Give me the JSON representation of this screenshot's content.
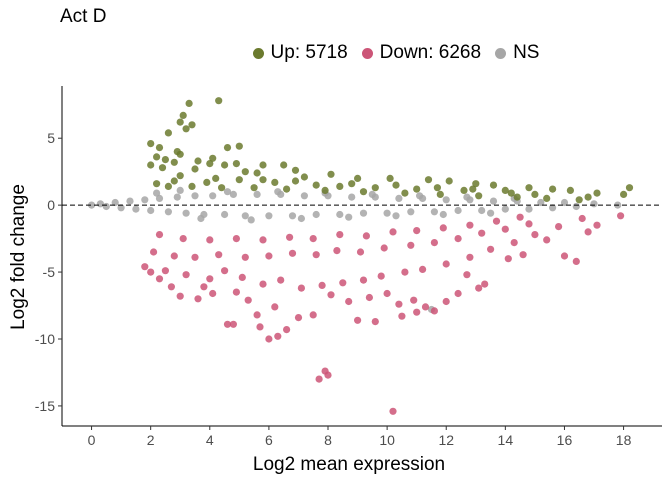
{
  "chart_data": {
    "type": "scatter",
    "title": "Act D",
    "xlabel": "Log2 mean expression",
    "ylabel": "Log2 fold change",
    "xlim": [
      -1,
      19.3
    ],
    "ylim": [
      -16.5,
      8.9
    ],
    "xticks": [
      0,
      2,
      4,
      6,
      8,
      10,
      12,
      14,
      16,
      18
    ],
    "yticks": [
      5,
      0,
      -5,
      -10,
      -15
    ],
    "reference_line_y": 0,
    "grid": false,
    "legend_position": "top",
    "series": [
      {
        "name": "Up: 5718",
        "color": "#6b7a2e",
        "points": [
          [
            3.3,
            7.6
          ],
          [
            4.3,
            7.8
          ],
          [
            3.1,
            6.7
          ],
          [
            3.0,
            6.2
          ],
          [
            3.4,
            6.0
          ],
          [
            3.2,
            5.7
          ],
          [
            2.6,
            5.4
          ],
          [
            2.0,
            4.6
          ],
          [
            2.3,
            4.3
          ],
          [
            4.6,
            4.3
          ],
          [
            5.0,
            4.4
          ],
          [
            2.9,
            4.0
          ],
          [
            3.0,
            3.8
          ],
          [
            2.2,
            3.6
          ],
          [
            2.5,
            3.4
          ],
          [
            2.8,
            3.2
          ],
          [
            3.6,
            3.3
          ],
          [
            4.1,
            3.5
          ],
          [
            4.0,
            3.1
          ],
          [
            4.9,
            3.1
          ],
          [
            5.8,
            3.0
          ],
          [
            6.5,
            3.0
          ],
          [
            4.5,
            3.0
          ],
          [
            2.0,
            3.0
          ],
          [
            2.4,
            2.8
          ],
          [
            3.5,
            2.7
          ],
          [
            5.2,
            2.5
          ],
          [
            6.9,
            2.6
          ],
          [
            5.6,
            2.4
          ],
          [
            7.2,
            2.1
          ],
          [
            8.1,
            2.3
          ],
          [
            9.0,
            2.0
          ],
          [
            10.1,
            2.0
          ],
          [
            11.4,
            1.9
          ],
          [
            12.1,
            1.8
          ],
          [
            13.0,
            1.6
          ],
          [
            13.6,
            1.5
          ],
          [
            14.8,
            1.3
          ],
          [
            15.6,
            1.2
          ],
          [
            16.2,
            1.1
          ],
          [
            17.1,
            0.9
          ],
          [
            18.2,
            1.3
          ],
          [
            18.0,
            0.8
          ],
          [
            16.8,
            0.6
          ],
          [
            15.0,
            0.8
          ],
          [
            14.2,
            0.9
          ],
          [
            12.6,
            1.1
          ],
          [
            11.0,
            1.2
          ],
          [
            9.6,
            1.3
          ],
          [
            8.4,
            1.4
          ],
          [
            7.6,
            1.5
          ],
          [
            6.2,
            1.7
          ],
          [
            5.0,
            1.9
          ],
          [
            4.2,
            2.0
          ],
          [
            3.0,
            2.2
          ],
          [
            2.2,
            1.6
          ],
          [
            2.6,
            1.4
          ],
          [
            3.4,
            1.4
          ],
          [
            4.4,
            1.3
          ],
          [
            5.5,
            1.3
          ],
          [
            6.6,
            1.2
          ],
          [
            7.9,
            1.1
          ],
          [
            9.2,
            1.0
          ],
          [
            10.6,
            0.9
          ],
          [
            11.8,
            0.8
          ],
          [
            13.1,
            0.7
          ],
          [
            14.4,
            0.6
          ],
          [
            15.4,
            0.5
          ],
          [
            16.5,
            0.4
          ],
          [
            2.8,
            1.8
          ],
          [
            3.9,
            1.7
          ],
          [
            5.8,
            1.9
          ],
          [
            6.9,
            1.8
          ],
          [
            8.8,
            1.6
          ],
          [
            10.3,
            1.5
          ],
          [
            11.7,
            1.3
          ],
          [
            12.9,
            1.2
          ],
          [
            14.0,
            1.1
          ]
        ]
      },
      {
        "name": "Down: 6268",
        "color": "#cc5577",
        "points": [
          [
            10.2,
            -15.4
          ],
          [
            7.9,
            -12.4
          ],
          [
            7.7,
            -13.0
          ],
          [
            8.0,
            -12.7
          ],
          [
            6.3,
            -9.8
          ],
          [
            6.0,
            -10.0
          ],
          [
            6.6,
            -9.3
          ],
          [
            5.7,
            -9.1
          ],
          [
            4.8,
            -8.9
          ],
          [
            4.6,
            -8.9
          ],
          [
            5.6,
            -8.2
          ],
          [
            7.0,
            -8.4
          ],
          [
            7.5,
            -8.2
          ],
          [
            9.0,
            -8.6
          ],
          [
            9.6,
            -8.7
          ],
          [
            10.5,
            -8.3
          ],
          [
            11.0,
            -8.0
          ],
          [
            11.6,
            -7.9
          ],
          [
            11.3,
            -7.6
          ],
          [
            10.9,
            -7.1
          ],
          [
            12.0,
            -7.2
          ],
          [
            12.4,
            -6.6
          ],
          [
            13.1,
            -6.2
          ],
          [
            13.3,
            -5.9
          ],
          [
            12.7,
            -5.2
          ],
          [
            14.1,
            -4.0
          ],
          [
            14.6,
            -3.7
          ],
          [
            16.0,
            -3.8
          ],
          [
            16.4,
            -4.2
          ],
          [
            15.4,
            -2.6
          ],
          [
            16.8,
            -2.0
          ],
          [
            17.1,
            -1.5
          ],
          [
            17.9,
            -0.8
          ],
          [
            4.0,
            -5.5
          ],
          [
            3.8,
            -6.1
          ],
          [
            4.1,
            -6.6
          ],
          [
            3.6,
            -7.0
          ],
          [
            3.0,
            -6.8
          ],
          [
            2.7,
            -6.1
          ],
          [
            2.3,
            -5.5
          ],
          [
            2.0,
            -5.0
          ],
          [
            1.8,
            -4.6
          ],
          [
            2.5,
            -4.9
          ],
          [
            3.2,
            -5.2
          ],
          [
            4.5,
            -4.9
          ],
          [
            5.1,
            -5.4
          ],
          [
            5.8,
            -5.9
          ],
          [
            6.4,
            -5.6
          ],
          [
            7.1,
            -6.2
          ],
          [
            7.8,
            -6.0
          ],
          [
            8.5,
            -5.8
          ],
          [
            9.2,
            -5.6
          ],
          [
            9.8,
            -5.3
          ],
          [
            10.6,
            -5.0
          ],
          [
            11.2,
            -4.8
          ],
          [
            12.0,
            -4.4
          ],
          [
            12.8,
            -3.9
          ],
          [
            13.5,
            -3.3
          ],
          [
            14.3,
            -2.8
          ],
          [
            15.0,
            -2.2
          ],
          [
            15.8,
            -1.6
          ],
          [
            16.6,
            -1.0
          ],
          [
            2.1,
            -3.5
          ],
          [
            2.8,
            -3.8
          ],
          [
            3.5,
            -3.9
          ],
          [
            4.3,
            -3.7
          ],
          [
            5.2,
            -3.9
          ],
          [
            6.0,
            -3.8
          ],
          [
            6.8,
            -3.6
          ],
          [
            7.6,
            -3.7
          ],
          [
            8.3,
            -3.4
          ],
          [
            9.1,
            -3.5
          ],
          [
            9.9,
            -3.2
          ],
          [
            10.8,
            -3.0
          ],
          [
            11.6,
            -2.8
          ],
          [
            12.4,
            -2.5
          ],
          [
            13.2,
            -2.1
          ],
          [
            14.0,
            -1.8
          ],
          [
            14.8,
            -1.4
          ],
          [
            2.3,
            -2.2
          ],
          [
            3.1,
            -2.5
          ],
          [
            4.0,
            -2.6
          ],
          [
            4.9,
            -2.5
          ],
          [
            5.8,
            -2.6
          ],
          [
            6.7,
            -2.4
          ],
          [
            7.5,
            -2.5
          ],
          [
            8.4,
            -2.2
          ],
          [
            9.3,
            -2.3
          ],
          [
            10.2,
            -2.0
          ],
          [
            11.0,
            -1.9
          ],
          [
            11.9,
            -1.7
          ],
          [
            12.8,
            -1.5
          ],
          [
            13.7,
            -1.2
          ],
          [
            14.5,
            -0.9
          ],
          [
            8.7,
            -7.2
          ],
          [
            9.4,
            -6.9
          ],
          [
            6.2,
            -7.6
          ],
          [
            5.3,
            -7.1
          ],
          [
            4.9,
            -6.5
          ],
          [
            8.1,
            -6.7
          ],
          [
            10.0,
            -6.6
          ],
          [
            10.4,
            -7.4
          ]
        ]
      },
      {
        "name": "NS",
        "color": "#a6a6a6",
        "points": [
          [
            0.0,
            0.0
          ],
          [
            0.3,
            0.1
          ],
          [
            0.5,
            -0.1
          ],
          [
            0.8,
            0.2
          ],
          [
            1.0,
            -0.2
          ],
          [
            1.3,
            0.3
          ],
          [
            1.5,
            -0.3
          ],
          [
            1.8,
            0.4
          ],
          [
            2.0,
            -0.4
          ],
          [
            2.3,
            0.5
          ],
          [
            2.6,
            -0.5
          ],
          [
            2.9,
            0.6
          ],
          [
            3.2,
            -0.6
          ],
          [
            3.5,
            0.7
          ],
          [
            3.8,
            -0.7
          ],
          [
            4.1,
            0.7
          ],
          [
            4.5,
            -0.7
          ],
          [
            4.8,
            0.8
          ],
          [
            5.2,
            -0.8
          ],
          [
            5.6,
            0.8
          ],
          [
            6.0,
            -0.8
          ],
          [
            6.4,
            0.8
          ],
          [
            6.8,
            -0.8
          ],
          [
            7.2,
            0.7
          ],
          [
            7.6,
            -0.7
          ],
          [
            8.0,
            0.7
          ],
          [
            8.4,
            -0.7
          ],
          [
            8.8,
            0.6
          ],
          [
            9.2,
            -0.6
          ],
          [
            9.6,
            0.6
          ],
          [
            10.0,
            -0.6
          ],
          [
            10.4,
            0.5
          ],
          [
            10.8,
            -0.5
          ],
          [
            11.2,
            0.5
          ],
          [
            11.6,
            -0.5
          ],
          [
            12.0,
            0.4
          ],
          [
            12.4,
            -0.4
          ],
          [
            12.8,
            0.4
          ],
          [
            13.2,
            -0.4
          ],
          [
            13.6,
            0.3
          ],
          [
            14.0,
            -0.3
          ],
          [
            14.4,
            0.3
          ],
          [
            14.8,
            -0.3
          ],
          [
            15.2,
            0.2
          ],
          [
            15.6,
            -0.2
          ],
          [
            16.0,
            0.2
          ],
          [
            16.4,
            -0.1
          ],
          [
            17.0,
            0.1
          ],
          [
            17.8,
            0.0
          ],
          [
            11.5,
            -7.8
          ],
          [
            2.2,
            0.9
          ],
          [
            3.0,
            1.1
          ],
          [
            3.7,
            -1.0
          ],
          [
            4.6,
            1.0
          ],
          [
            5.4,
            -1.1
          ],
          [
            6.3,
            1.0
          ],
          [
            7.1,
            -1.0
          ],
          [
            7.9,
            0.9
          ],
          [
            8.7,
            -0.9
          ],
          [
            9.5,
            0.8
          ],
          [
            10.3,
            -0.8
          ],
          [
            11.1,
            0.7
          ],
          [
            11.9,
            -0.7
          ],
          [
            12.7,
            0.6
          ],
          [
            13.5,
            -0.6
          ],
          [
            14.3,
            0.5
          ]
        ]
      }
    ]
  }
}
